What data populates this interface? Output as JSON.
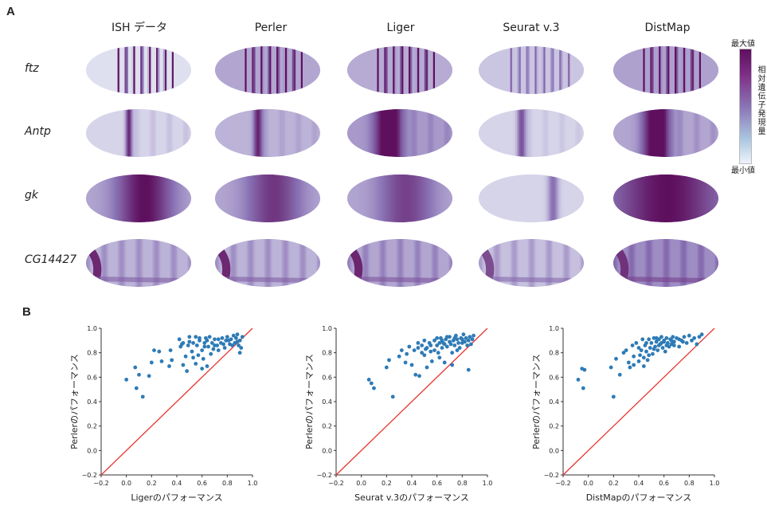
{
  "panel_labels": {
    "a": "A",
    "b": "B"
  },
  "methods": [
    "ISH データ",
    "Perler",
    "Liger",
    "Seurat v.3",
    "DistMap"
  ],
  "genes": [
    "ftz",
    "Antp",
    "gk",
    "CG14427"
  ],
  "colorbar": {
    "max_label": "最大値",
    "min_label": "最小値",
    "title": "相対遺伝子発現量",
    "colors": {
      "high": "#5e0f5e",
      "mid": "#8a73b5",
      "low": "#eef3fa"
    }
  },
  "embryo_patterns": [
    [
      {
        "type": "stripes",
        "count": 7,
        "start": 0.3,
        "end": 0.82,
        "strength": 0.95,
        "base": 0.08
      },
      {
        "type": "stripes",
        "count": 7,
        "start": 0.28,
        "end": 0.82,
        "strength": 0.8,
        "base": 0.3
      },
      {
        "type": "stripes",
        "count": 7,
        "start": 0.28,
        "end": 0.82,
        "strength": 0.85,
        "base": 0.28
      },
      {
        "type": "stripes",
        "count": 7,
        "start": 0.3,
        "end": 0.85,
        "strength": 0.4,
        "base": 0.18
      },
      {
        "type": "stripes",
        "count": 7,
        "start": 0.28,
        "end": 0.82,
        "strength": 0.8,
        "base": 0.32
      }
    ],
    [
      {
        "type": "band",
        "center": 0.4,
        "width": 0.03,
        "strength": 0.75,
        "base": 0.12
      },
      {
        "type": "band",
        "center": 0.4,
        "width": 0.04,
        "strength": 0.65,
        "base": 0.25
      },
      {
        "type": "band",
        "center": 0.38,
        "width": 0.12,
        "strength": 0.85,
        "base": 0.35
      },
      {
        "type": "band",
        "center": 0.4,
        "width": 0.04,
        "strength": 0.55,
        "base": 0.12
      },
      {
        "type": "band",
        "center": 0.4,
        "width": 0.12,
        "strength": 0.9,
        "base": 0.3
      }
    ],
    [
      {
        "type": "region",
        "center": 0.55,
        "width": 0.25,
        "strength": 0.7,
        "base": 0.3
      },
      {
        "type": "region",
        "center": 0.55,
        "width": 0.25,
        "strength": 0.5,
        "base": 0.3
      },
      {
        "type": "region",
        "center": 0.55,
        "width": 0.25,
        "strength": 0.45,
        "base": 0.3
      },
      {
        "type": "region",
        "center": 0.7,
        "width": 0.05,
        "strength": 0.4,
        "base": 0.12
      },
      {
        "type": "region",
        "center": 0.5,
        "width": 0.45,
        "strength": 0.6,
        "base": 0.4
      }
    ],
    [
      {
        "type": "anterior",
        "strength": 0.9,
        "base": 0.25
      },
      {
        "type": "anterior",
        "strength": 0.8,
        "base": 0.25
      },
      {
        "type": "anterior",
        "strength": 0.9,
        "base": 0.3
      },
      {
        "type": "anterior",
        "strength": 0.6,
        "base": 0.2
      },
      {
        "type": "anterior",
        "strength": 0.5,
        "base": 0.4
      }
    ]
  ],
  "chart_data": [
    {
      "type": "scatter",
      "xlabel": "Ligerのパフォーマンス",
      "ylabel": "Perlerのパフォーマンス",
      "xlim": [
        -0.2,
        1.0
      ],
      "ylim": [
        -0.2,
        1.0
      ],
      "xticks": [
        "−0.2",
        "0.0",
        "0.2",
        "0.4",
        "0.6",
        "0.8",
        "1.0"
      ],
      "yticks": [
        "−0.2",
        "0.0",
        "0.2",
        "0.4",
        "0.6",
        "0.8",
        "1.0"
      ],
      "diagonal": true,
      "point_color": "#2e7bb6",
      "line_color": "#e8342e",
      "points": [
        [
          0.0,
          0.58
        ],
        [
          0.08,
          0.51
        ],
        [
          0.13,
          0.44
        ],
        [
          0.1,
          0.62
        ],
        [
          0.07,
          0.68
        ],
        [
          0.18,
          0.61
        ],
        [
          0.2,
          0.72
        ],
        [
          0.22,
          0.82
        ],
        [
          0.26,
          0.81
        ],
        [
          0.28,
          0.73
        ],
        [
          0.34,
          0.69
        ],
        [
          0.36,
          0.74
        ],
        [
          0.35,
          0.82
        ],
        [
          0.42,
          0.91
        ],
        [
          0.44,
          0.87
        ],
        [
          0.45,
          0.7
        ],
        [
          0.48,
          0.65
        ],
        [
          0.47,
          0.77
        ],
        [
          0.5,
          0.89
        ],
        [
          0.52,
          0.81
        ],
        [
          0.53,
          0.76
        ],
        [
          0.55,
          0.71
        ],
        [
          0.56,
          0.86
        ],
        [
          0.58,
          0.9
        ],
        [
          0.6,
          0.82
        ],
        [
          0.61,
          0.75
        ],
        [
          0.62,
          0.88
        ],
        [
          0.63,
          0.92
        ],
        [
          0.64,
          0.69
        ],
        [
          0.65,
          0.85
        ],
        [
          0.67,
          0.79
        ],
        [
          0.68,
          0.88
        ],
        [
          0.7,
          0.91
        ],
        [
          0.72,
          0.86
        ],
        [
          0.73,
          0.82
        ],
        [
          0.75,
          0.88
        ],
        [
          0.76,
          0.92
        ],
        [
          0.78,
          0.84
        ],
        [
          0.79,
          0.9
        ],
        [
          0.8,
          0.93
        ],
        [
          0.82,
          0.87
        ],
        [
          0.83,
          0.91
        ],
        [
          0.85,
          0.94
        ],
        [
          0.86,
          0.88
        ],
        [
          0.87,
          0.92
        ],
        [
          0.88,
          0.95
        ],
        [
          0.89,
          0.86
        ],
        [
          0.9,
          0.9
        ],
        [
          0.91,
          0.84
        ],
        [
          0.92,
          0.93
        ],
        [
          0.55,
          0.93
        ],
        [
          0.58,
          0.92
        ],
        [
          0.62,
          0.85
        ],
        [
          0.66,
          0.93
        ],
        [
          0.7,
          0.86
        ],
        [
          0.43,
          0.85
        ],
        [
          0.5,
          0.93
        ],
        [
          0.49,
          0.86
        ],
        [
          0.57,
          0.78
        ],
        [
          0.64,
          0.9
        ],
        [
          0.69,
          0.83
        ],
        [
          0.73,
          0.91
        ],
        [
          0.77,
          0.87
        ],
        [
          0.81,
          0.9
        ],
        [
          0.84,
          0.86
        ],
        [
          0.88,
          0.89
        ],
        [
          0.9,
          0.8
        ],
        [
          0.6,
          0.67
        ],
        [
          0.45,
          0.88
        ],
        [
          0.53,
          0.88
        ]
      ]
    },
    {
      "type": "scatter",
      "xlabel": "Seurat v.3のパフォーマンス",
      "ylabel": "Perlerのパフォーマンス",
      "xlim": [
        -0.2,
        1.0
      ],
      "ylim": [
        -0.2,
        1.0
      ],
      "xticks": [
        "−0.2",
        "0.0",
        "0.2",
        "0.4",
        "0.6",
        "0.8",
        "1.0"
      ],
      "yticks": [
        "−0.2",
        "0.0",
        "0.2",
        "0.4",
        "0.6",
        "0.8",
        "1.0"
      ],
      "diagonal": true,
      "point_color": "#2e7bb6",
      "line_color": "#e8342e",
      "points": [
        [
          0.06,
          0.58
        ],
        [
          0.08,
          0.55
        ],
        [
          0.1,
          0.51
        ],
        [
          0.2,
          0.68
        ],
        [
          0.22,
          0.74
        ],
        [
          0.25,
          0.44
        ],
        [
          0.3,
          0.77
        ],
        [
          0.32,
          0.82
        ],
        [
          0.35,
          0.72
        ],
        [
          0.36,
          0.79
        ],
        [
          0.38,
          0.85
        ],
        [
          0.4,
          0.7
        ],
        [
          0.42,
          0.82
        ],
        [
          0.43,
          0.62
        ],
        [
          0.45,
          0.84
        ],
        [
          0.46,
          0.61
        ],
        [
          0.48,
          0.86
        ],
        [
          0.5,
          0.78
        ],
        [
          0.51,
          0.83
        ],
        [
          0.52,
          0.68
        ],
        [
          0.54,
          0.88
        ],
        [
          0.55,
          0.81
        ],
        [
          0.56,
          0.73
        ],
        [
          0.58,
          0.9
        ],
        [
          0.6,
          0.86
        ],
        [
          0.61,
          0.8
        ],
        [
          0.62,
          0.76
        ],
        [
          0.63,
          0.92
        ],
        [
          0.64,
          0.84
        ],
        [
          0.65,
          0.88
        ],
        [
          0.66,
          0.72
        ],
        [
          0.67,
          0.91
        ],
        [
          0.68,
          0.85
        ],
        [
          0.7,
          0.93
        ],
        [
          0.71,
          0.87
        ],
        [
          0.72,
          0.8
        ],
        [
          0.73,
          0.9
        ],
        [
          0.74,
          0.86
        ],
        [
          0.75,
          0.94
        ],
        [
          0.76,
          0.91
        ],
        [
          0.77,
          0.88
        ],
        [
          0.78,
          0.84
        ],
        [
          0.79,
          0.92
        ],
        [
          0.8,
          0.88
        ],
        [
          0.81,
          0.95
        ],
        [
          0.82,
          0.89
        ],
        [
          0.83,
          0.92
        ],
        [
          0.84,
          0.86
        ],
        [
          0.85,
          0.9
        ],
        [
          0.86,
          0.93
        ],
        [
          0.87,
          0.87
        ],
        [
          0.88,
          0.91
        ],
        [
          0.89,
          0.94
        ],
        [
          0.85,
          0.66
        ],
        [
          0.72,
          0.7
        ],
        [
          0.6,
          0.92
        ],
        [
          0.55,
          0.86
        ],
        [
          0.5,
          0.9
        ],
        [
          0.45,
          0.88
        ],
        [
          0.58,
          0.82
        ],
        [
          0.64,
          0.9
        ],
        [
          0.68,
          0.93
        ],
        [
          0.74,
          0.92
        ],
        [
          0.66,
          0.87
        ],
        [
          0.76,
          0.82
        ],
        [
          0.62,
          0.88
        ],
        [
          0.7,
          0.89
        ],
        [
          0.8,
          0.91
        ],
        [
          0.52,
          0.84
        ],
        [
          0.48,
          0.8
        ]
      ]
    },
    {
      "type": "scatter",
      "xlabel": "DistMapのパフォーマンス",
      "ylabel": "Perlerのパフォーマンス",
      "xlim": [
        -0.2,
        1.0
      ],
      "ylim": [
        -0.2,
        1.0
      ],
      "xticks": [
        "−0.2",
        "0.0",
        "0.2",
        "0.4",
        "0.6",
        "0.8",
        "1.0"
      ],
      "yticks": [
        "−0.2",
        "0.0",
        "0.2",
        "0.4",
        "0.6",
        "0.8",
        "1.0"
      ],
      "diagonal": true,
      "point_color": "#2e7bb6",
      "line_color": "#e8342e",
      "points": [
        [
          -0.08,
          0.58
        ],
        [
          -0.05,
          0.67
        ],
        [
          -0.03,
          0.66
        ],
        [
          -0.04,
          0.51
        ],
        [
          0.2,
          0.44
        ],
        [
          0.18,
          0.68
        ],
        [
          0.22,
          0.75
        ],
        [
          0.25,
          0.62
        ],
        [
          0.28,
          0.8
        ],
        [
          0.3,
          0.82
        ],
        [
          0.32,
          0.72
        ],
        [
          0.33,
          0.68
        ],
        [
          0.35,
          0.86
        ],
        [
          0.36,
          0.7
        ],
        [
          0.38,
          0.88
        ],
        [
          0.4,
          0.84
        ],
        [
          0.41,
          0.78
        ],
        [
          0.42,
          0.82
        ],
        [
          0.43,
          0.91
        ],
        [
          0.44,
          0.76
        ],
        [
          0.45,
          0.86
        ],
        [
          0.46,
          0.81
        ],
        [
          0.47,
          0.74
        ],
        [
          0.48,
          0.91
        ],
        [
          0.49,
          0.84
        ],
        [
          0.5,
          0.88
        ],
        [
          0.51,
          0.79
        ],
        [
          0.52,
          0.92
        ],
        [
          0.53,
          0.85
        ],
        [
          0.54,
          0.89
        ],
        [
          0.55,
          0.82
        ],
        [
          0.56,
          0.91
        ],
        [
          0.57,
          0.87
        ],
        [
          0.58,
          0.93
        ],
        [
          0.59,
          0.84
        ],
        [
          0.6,
          0.89
        ],
        [
          0.61,
          0.81
        ],
        [
          0.62,
          0.92
        ],
        [
          0.63,
          0.88
        ],
        [
          0.64,
          0.85
        ],
        [
          0.65,
          0.91
        ],
        [
          0.66,
          0.87
        ],
        [
          0.67,
          0.93
        ],
        [
          0.68,
          0.89
        ],
        [
          0.7,
          0.92
        ],
        [
          0.72,
          0.85
        ],
        [
          0.74,
          0.9
        ],
        [
          0.76,
          0.93
        ],
        [
          0.78,
          0.88
        ],
        [
          0.8,
          0.94
        ],
        [
          0.82,
          0.9
        ],
        [
          0.84,
          0.92
        ],
        [
          0.86,
          0.87
        ],
        [
          0.88,
          0.93
        ],
        [
          0.9,
          0.95
        ],
        [
          0.4,
          0.73
        ],
        [
          0.44,
          0.69
        ],
        [
          0.48,
          0.78
        ],
        [
          0.56,
          0.86
        ],
        [
          0.6,
          0.9
        ],
        [
          0.36,
          0.77
        ],
        [
          0.52,
          0.83
        ],
        [
          0.62,
          0.86
        ],
        [
          0.66,
          0.9
        ],
        [
          0.72,
          0.91
        ],
        [
          0.46,
          0.88
        ],
        [
          0.54,
          0.92
        ],
        [
          0.58,
          0.88
        ],
        [
          0.68,
          0.86
        ],
        [
          0.75,
          0.89
        ]
      ]
    }
  ]
}
